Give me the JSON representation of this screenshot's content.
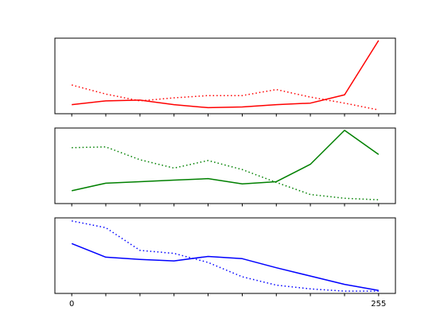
{
  "chart_data": [
    {
      "type": "line",
      "title": "",
      "xlabel": "",
      "ylabel": "",
      "xlim": [
        -14,
        269
      ],
      "ylim": [
        0,
        1
      ],
      "show_yticks": false,
      "show_xticklabels": false,
      "x": [
        0,
        28.3,
        56.7,
        85,
        113.3,
        141.7,
        170,
        198.3,
        226.7,
        255
      ],
      "series": [
        {
          "style": "solid",
          "color": "#ff0000",
          "values": [
            0.12,
            0.17,
            0.18,
            0.12,
            0.08,
            0.09,
            0.12,
            0.14,
            0.25,
            0.97
          ]
        },
        {
          "style": "dotted",
          "color": "#ff0000",
          "values": [
            0.38,
            0.26,
            0.17,
            0.21,
            0.24,
            0.24,
            0.32,
            0.22,
            0.14,
            0.05
          ]
        }
      ]
    },
    {
      "type": "line",
      "title": "",
      "xlabel": "",
      "ylabel": "",
      "xlim": [
        -14,
        269
      ],
      "ylim": [
        0,
        1
      ],
      "show_yticks": false,
      "show_xticklabels": false,
      "x": [
        0,
        28.3,
        56.7,
        85,
        113.3,
        141.7,
        170,
        198.3,
        226.7,
        255
      ],
      "series": [
        {
          "style": "solid",
          "color": "#008000",
          "values": [
            0.17,
            0.27,
            0.29,
            0.31,
            0.33,
            0.26,
            0.29,
            0.52,
            0.97,
            0.65
          ]
        },
        {
          "style": "dotted",
          "color": "#008000",
          "values": [
            0.74,
            0.75,
            0.58,
            0.47,
            0.57,
            0.45,
            0.28,
            0.12,
            0.07,
            0.05
          ]
        }
      ]
    },
    {
      "type": "line",
      "title": "",
      "xlabel": "",
      "ylabel": "",
      "xlim": [
        -14,
        269
      ],
      "ylim": [
        0,
        1
      ],
      "show_yticks": false,
      "show_xticklabels": true,
      "x": [
        0,
        28.3,
        56.7,
        85,
        113.3,
        141.7,
        170,
        198.3,
        226.7,
        255
      ],
      "xtick_labels": [
        "0",
        "",
        "",
        "",
        "",
        "",
        "",
        "",
        "",
        "255"
      ],
      "series": [
        {
          "style": "solid",
          "color": "#0000ff",
          "values": [
            0.66,
            0.48,
            0.45,
            0.43,
            0.49,
            0.46,
            0.34,
            0.23,
            0.12,
            0.04
          ]
        },
        {
          "style": "dotted",
          "color": "#0000ff",
          "values": [
            0.96,
            0.87,
            0.57,
            0.53,
            0.41,
            0.22,
            0.11,
            0.06,
            0.03,
            0.03
          ]
        }
      ]
    }
  ]
}
